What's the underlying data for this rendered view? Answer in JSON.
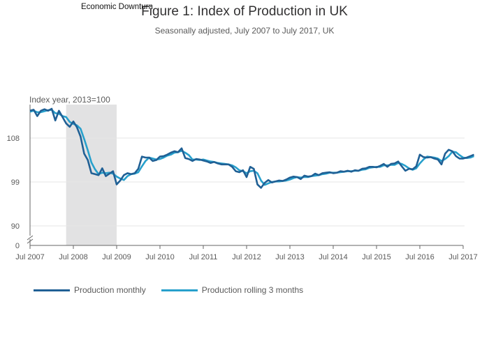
{
  "colors": {
    "monthly": "#206095",
    "rolling": "#27a0cc",
    "shade": "#e2e2e3",
    "grid": "#e6e6e6",
    "axis": "#666666"
  },
  "chart_data": {
    "type": "line",
    "title": "Figure 1: Index of Production in UK",
    "subtitle": "Seasonally adjusted, July 2007 to July 2017, UK",
    "ylabel": "Index year, 2013=100",
    "shade_label": "Economic Downturn",
    "shade_range": [
      10,
      24
    ],
    "ylim": [
      0,
      115
    ],
    "y_axis_break": true,
    "y_ticks": [
      0,
      90,
      99,
      108
    ],
    "x_ticks": [
      "Jul 2007",
      "Jul 2008",
      "Jul 2009",
      "Jul 2010",
      "Jul 2011",
      "Jul 2012",
      "Jul 2013",
      "Jul 2014",
      "Jul 2015",
      "Jul 2016",
      "Jul 2017"
    ],
    "legend": [
      "Production monthly",
      "Production rolling 3 months"
    ],
    "series": [
      {
        "name": "Production monthly",
        "values": [
          113.6,
          113.8,
          112.5,
          113.6,
          113.9,
          113.6,
          114.0,
          111.6,
          113.6,
          112.3,
          111.0,
          110.3,
          111.4,
          110.2,
          108.3,
          104.8,
          103.5,
          100.8,
          100.6,
          100.4,
          101.8,
          100.2,
          100.7,
          101.2,
          98.5,
          99.3,
          100.4,
          100.8,
          100.6,
          100.8,
          101.7,
          104.2,
          104.0,
          104.0,
          103.3,
          103.5,
          104.2,
          104.3,
          104.6,
          105.0,
          105.3,
          105.1,
          105.9,
          103.9,
          103.7,
          103.3,
          103.7,
          103.6,
          103.4,
          103.2,
          102.9,
          103.1,
          102.8,
          102.6,
          102.6,
          102.6,
          102.1,
          101.2,
          101.0,
          101.4,
          100.0,
          102.1,
          101.7,
          98.5,
          97.8,
          98.8,
          99.4,
          98.9,
          99.1,
          99.3,
          99.2,
          99.5,
          99.9,
          100.1,
          100.0,
          99.6,
          100.3,
          100.1,
          100.2,
          100.7,
          100.4,
          100.8,
          100.9,
          101.0,
          100.8,
          100.9,
          101.2,
          101.1,
          101.3,
          101.1,
          101.4,
          101.3,
          101.7,
          101.8,
          102.1,
          102.1,
          102.0,
          102.3,
          102.7,
          102.1,
          102.7,
          102.8,
          103.2,
          102.2,
          101.3,
          101.7,
          101.6,
          102.2,
          104.6,
          104.1,
          104.0,
          104.1,
          103.8,
          103.6,
          102.6,
          104.8,
          105.6,
          105.3,
          104.3,
          103.8,
          103.8,
          104.0,
          104.3,
          104.6
        ]
      },
      {
        "name": "Production rolling 3 months",
        "values": [
          113.4,
          113.6,
          113.3,
          113.3,
          113.5,
          113.7,
          113.8,
          113.1,
          113.0,
          112.5,
          112.3,
          111.3,
          110.9,
          110.6,
          109.9,
          107.8,
          105.5,
          103.0,
          101.6,
          100.6,
          100.9,
          100.8,
          100.9,
          100.7,
          100.1,
          99.7,
          99.4,
          100.2,
          100.6,
          100.7,
          101.0,
          102.2,
          103.3,
          104.0,
          103.8,
          103.6,
          103.7,
          104.0,
          104.4,
          104.6,
          105.0,
          105.1,
          105.4,
          105.0,
          104.5,
          103.6,
          103.6,
          103.5,
          103.6,
          103.4,
          103.2,
          103.1,
          102.9,
          102.8,
          102.7,
          102.6,
          102.4,
          102.0,
          101.4,
          101.2,
          100.8,
          101.2,
          101.3,
          100.8,
          99.3,
          98.4,
          98.7,
          99.0,
          99.1,
          99.1,
          99.2,
          99.3,
          99.5,
          99.8,
          100.0,
          99.9,
          100.0,
          100.0,
          100.2,
          100.3,
          100.4,
          100.6,
          100.7,
          100.9,
          100.9,
          100.9,
          101.0,
          101.1,
          101.2,
          101.2,
          101.3,
          101.3,
          101.5,
          101.6,
          101.9,
          102.0,
          102.1,
          102.1,
          102.4,
          102.4,
          102.5,
          102.5,
          102.9,
          102.7,
          102.3,
          101.8,
          101.5,
          101.8,
          102.8,
          103.6,
          104.2,
          104.1,
          104.0,
          103.8,
          103.3,
          103.7,
          104.3,
          105.2,
          105.1,
          104.5,
          104.0,
          103.9,
          104.0,
          104.3
        ]
      }
    ]
  }
}
